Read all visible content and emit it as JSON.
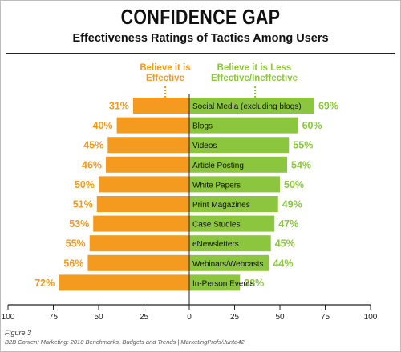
{
  "colors": {
    "effective": "#f39a1f",
    "ineffective": "#8cc63f",
    "axis": "#222222"
  },
  "header": {
    "title": "CONFIDENCE GAP",
    "subtitle": "Effectiveness Ratings of Tactics Among Users"
  },
  "legend": {
    "left": "Believe it is Effective",
    "right": "Believe it is Less Effective/Ineffective"
  },
  "footer": {
    "figure": "Figure 3",
    "source": "B2B Content Marketing: 2010 Benchmarks, Budgets and Trends | MarketingProfs/Junta42"
  },
  "chart_data": {
    "type": "bar",
    "orientation": "horizontal-diverging",
    "categories": [
      "Social Media (excluding blogs)",
      "Blogs",
      "Videos",
      "Article Posting",
      "White Papers",
      "Print Magazines",
      "Case Studies",
      "eNewsletters",
      "Webinars/Webcasts",
      "In-Person Events"
    ],
    "series": [
      {
        "name": "Believe it is Effective",
        "values": [
          31,
          40,
          45,
          46,
          50,
          51,
          53,
          55,
          56,
          72
        ]
      },
      {
        "name": "Believe it is Less Effective/Ineffective",
        "values": [
          69,
          60,
          55,
          54,
          50,
          49,
          47,
          45,
          44,
          28
        ]
      }
    ],
    "value_suffix": "%",
    "xlim": [
      -100,
      100
    ],
    "ticks": [
      {
        "value": -100,
        "label": "100"
      },
      {
        "value": -75,
        "label": "75"
      },
      {
        "value": -50,
        "label": "50"
      },
      {
        "value": -25,
        "label": "25"
      },
      {
        "value": 0,
        "label": "0"
      },
      {
        "value": 25,
        "label": "25"
      },
      {
        "value": 50,
        "label": "50"
      },
      {
        "value": 75,
        "label": "75"
      },
      {
        "value": 100,
        "label": "100"
      }
    ],
    "grid": false
  }
}
